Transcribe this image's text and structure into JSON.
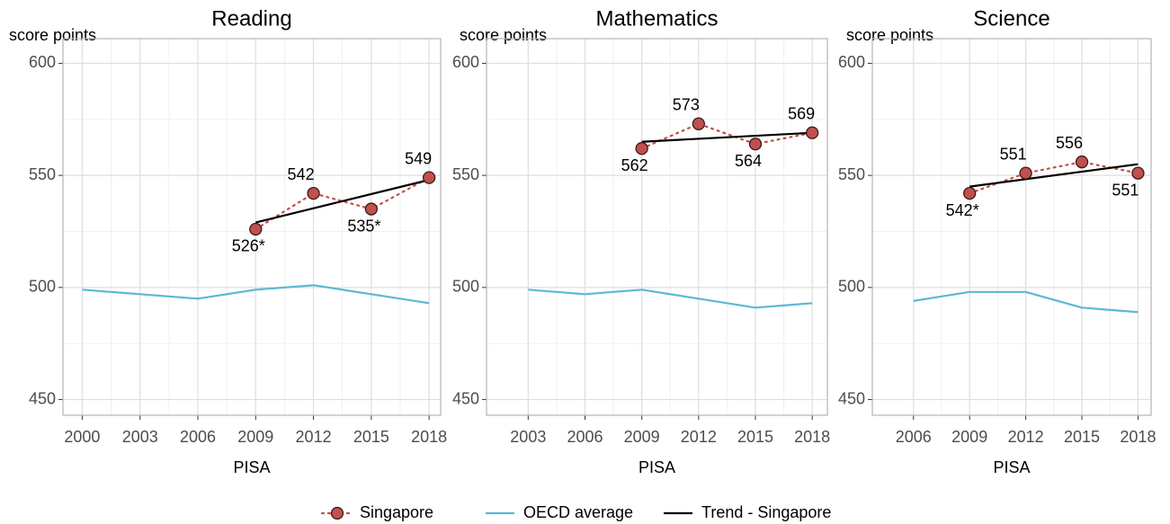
{
  "legend": {
    "position": "bottom",
    "entries": [
      {
        "name": "Singapore",
        "color": "#c0504d",
        "style": "dotted-marker"
      },
      {
        "name": "OECD average",
        "color": "#5bb8d4",
        "style": "solid"
      },
      {
        "name": "Trend - Singapore",
        "color": "#000000",
        "style": "solid"
      }
    ]
  },
  "chart_data": [
    {
      "type": "line",
      "title": "Reading",
      "ylabel": "score points",
      "xlabel": "PISA",
      "grid": true,
      "xlim": [
        1999,
        2018.6
      ],
      "xticks": [
        2000,
        2003,
        2006,
        2009,
        2012,
        2015,
        2018
      ],
      "ylim": [
        443,
        611
      ],
      "yticks": [
        450,
        500,
        550,
        600
      ],
      "series": [
        {
          "x": [
            2009,
            2012,
            2015,
            2018
          ],
          "values": [
            526,
            542,
            535,
            549
          ],
          "value_labels": [
            "526*",
            "542",
            "535*",
            "549"
          ]
        },
        {
          "x": [
            2000,
            2003,
            2006,
            2009,
            2012,
            2015,
            2018
          ],
          "values": [
            499,
            497,
            495,
            499,
            501,
            497,
            493
          ]
        },
        {
          "x": [
            2009,
            2018
          ],
          "values": [
            529,
            548
          ]
        }
      ]
    },
    {
      "type": "line",
      "title": "Mathematics",
      "ylabel": "score points",
      "xlabel": "PISA",
      "grid": true,
      "xlim": [
        2000.8,
        2018.8
      ],
      "xticks": [
        2003,
        2006,
        2009,
        2012,
        2015,
        2018
      ],
      "ylim": [
        443,
        611
      ],
      "yticks": [
        450,
        500,
        550,
        600
      ],
      "series": [
        {
          "x": [
            2009,
            2012,
            2015,
            2018
          ],
          "values": [
            562,
            573,
            564,
            569
          ],
          "value_labels": [
            "562",
            "573",
            "564",
            "569"
          ]
        },
        {
          "x": [
            2003,
            2006,
            2009,
            2012,
            2015,
            2018
          ],
          "values": [
            499,
            497,
            499,
            495,
            491,
            493
          ]
        },
        {
          "x": [
            2009,
            2018
          ],
          "values": [
            565,
            569
          ]
        }
      ]
    },
    {
      "type": "line",
      "title": "Science",
      "ylabel": "score points",
      "xlabel": "PISA",
      "grid": true,
      "xlim": [
        2003.8,
        2018.7
      ],
      "xticks": [
        2006,
        2009,
        2012,
        2015,
        2018
      ],
      "ylim": [
        443,
        611
      ],
      "yticks": [
        450,
        500,
        550,
        600
      ],
      "series": [
        {
          "x": [
            2009,
            2012,
            2015,
            2018
          ],
          "values": [
            542,
            551,
            556,
            551
          ],
          "value_labels": [
            "542*",
            "551",
            "556",
            "551"
          ]
        },
        {
          "x": [
            2006,
            2009,
            2012,
            2015,
            2018
          ],
          "values": [
            494,
            498,
            498,
            491,
            489
          ]
        },
        {
          "x": [
            2009,
            2018
          ],
          "values": [
            545,
            555
          ]
        }
      ]
    }
  ]
}
